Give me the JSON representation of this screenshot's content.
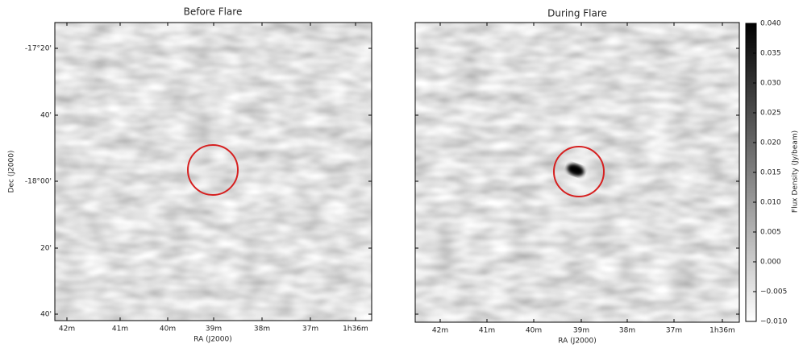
{
  "chart_data": [
    {
      "type": "image",
      "title": "Before Flare",
      "xlabel": "RA (J2000)",
      "ylabel": "Dec (J2000)",
      "xtick_labels": [
        "42m",
        "41m",
        "40m",
        "39m",
        "38m",
        "37m",
        "1h36m"
      ],
      "ytick_labels": [
        "-17°20'",
        "40'",
        "-18°00'",
        "20'",
        "40'"
      ]
    },
    {
      "type": "image",
      "title": "During Flare",
      "xlabel": "RA (J2000)",
      "xtick_labels": [
        "42m",
        "41m",
        "40m",
        "39m",
        "38m",
        "37m",
        "1h36m"
      ],
      "colorbar": {
        "label": "Flux Density (Jy/beam)",
        "ylim": [
          -0.01,
          0.04
        ],
        "yticks": [
          {
            "value": 0.04,
            "label": "0.040"
          },
          {
            "value": 0.035,
            "label": "0.035"
          },
          {
            "value": 0.03,
            "label": "0.030"
          },
          {
            "value": 0.025,
            "label": "0.025"
          },
          {
            "value": 0.02,
            "label": "0.020"
          },
          {
            "value": 0.015,
            "label": "0.015"
          },
          {
            "value": 0.01,
            "label": "0.010"
          },
          {
            "value": 0.005,
            "label": "0.005"
          },
          {
            "value": 0,
            "label": "0.000"
          },
          {
            "value": -0.005,
            "label": "−0.005"
          },
          {
            "value": -0.01,
            "label": "−0.010"
          }
        ]
      }
    }
  ]
}
